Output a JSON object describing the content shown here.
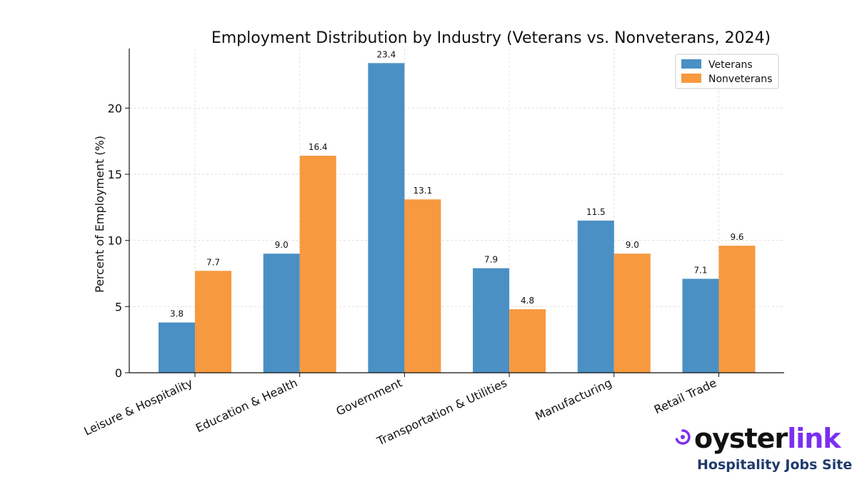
{
  "colors": {
    "veterans": "#4a90c4",
    "nonveterans": "#f7993f",
    "brand_purple": "#7b2ff2",
    "brand_navy": "#1f3a6b"
  },
  "chart_data": {
    "type": "bar",
    "title": "Employment Distribution by Industry (Veterans vs. Nonveterans, 2024)",
    "xlabel": "",
    "ylabel": "Percent of Employment (%)",
    "categories": [
      "Leisure & Hospitality",
      "Education & Health",
      "Government",
      "Transportation & Utilities",
      "Manufacturing",
      "Retail Trade"
    ],
    "series": [
      {
        "name": "Veterans",
        "values": [
          3.8,
          9.0,
          23.4,
          7.9,
          11.5,
          7.1
        ]
      },
      {
        "name": "Nonveterans",
        "values": [
          7.7,
          16.4,
          13.1,
          4.8,
          9.0,
          9.6
        ]
      }
    ],
    "value_labels": [
      [
        "3.8",
        "9.0",
        "23.4",
        "7.9",
        "11.5",
        "7.1"
      ],
      [
        "7.7",
        "16.4",
        "13.1",
        "4.8",
        "9.0",
        "9.6"
      ]
    ],
    "ylim": [
      0,
      24.5
    ],
    "yticks": [
      0,
      5,
      10,
      15,
      20
    ],
    "ytick_labels": [
      "0",
      "5",
      "10",
      "15",
      "20"
    ],
    "grid": true,
    "legend_position": "top-right"
  },
  "logo": {
    "word_part1": "oyster",
    "word_part2": "link",
    "tagline": "Hospitality Jobs Site",
    "icon": "oyster-swirl-icon"
  }
}
